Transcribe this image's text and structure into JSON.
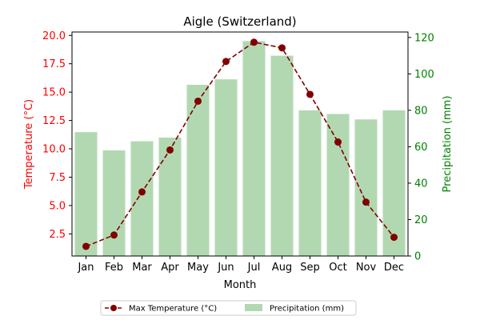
{
  "chart_data": {
    "type": "bar+line",
    "title": "Aigle (Switzerland)",
    "xlabel": "Month",
    "ylabel_left": "Temperature (°C)",
    "ylabel_right": "Precipitation (mm)",
    "categories": [
      "Jan",
      "Feb",
      "Mar",
      "Apr",
      "May",
      "Jun",
      "Jul",
      "Aug",
      "Sep",
      "Oct",
      "Nov",
      "Dec"
    ],
    "series": [
      {
        "name": "Max Temperature (°C)",
        "type": "line",
        "axis": "left",
        "color": "#800000",
        "line_style": "dashed",
        "marker": "circle",
        "values": [
          1.4,
          2.4,
          6.2,
          9.9,
          14.2,
          17.7,
          19.4,
          18.9,
          14.8,
          10.6,
          5.3,
          2.2
        ]
      },
      {
        "name": "Precipitation (mm)",
        "type": "bar",
        "axis": "right",
        "color": "#b2d8b2",
        "values": [
          68,
          58,
          63,
          65,
          94,
          97,
          118,
          110,
          80,
          78,
          75,
          80
        ]
      }
    ],
    "ylim_left": [
      0.55,
      20.3
    ],
    "ylim_right": [
      0,
      123
    ],
    "yticks_left": [
      "2.5",
      "5.0",
      "7.5",
      "10.0",
      "12.5",
      "15.0",
      "17.5",
      "20.0"
    ],
    "yticks_right": [
      "0",
      "20",
      "40",
      "60",
      "80",
      "100",
      "120"
    ],
    "left_axis_color": "#ff0000",
    "right_axis_color": "#008000",
    "grid": false,
    "legend_position": "bottom-center"
  }
}
